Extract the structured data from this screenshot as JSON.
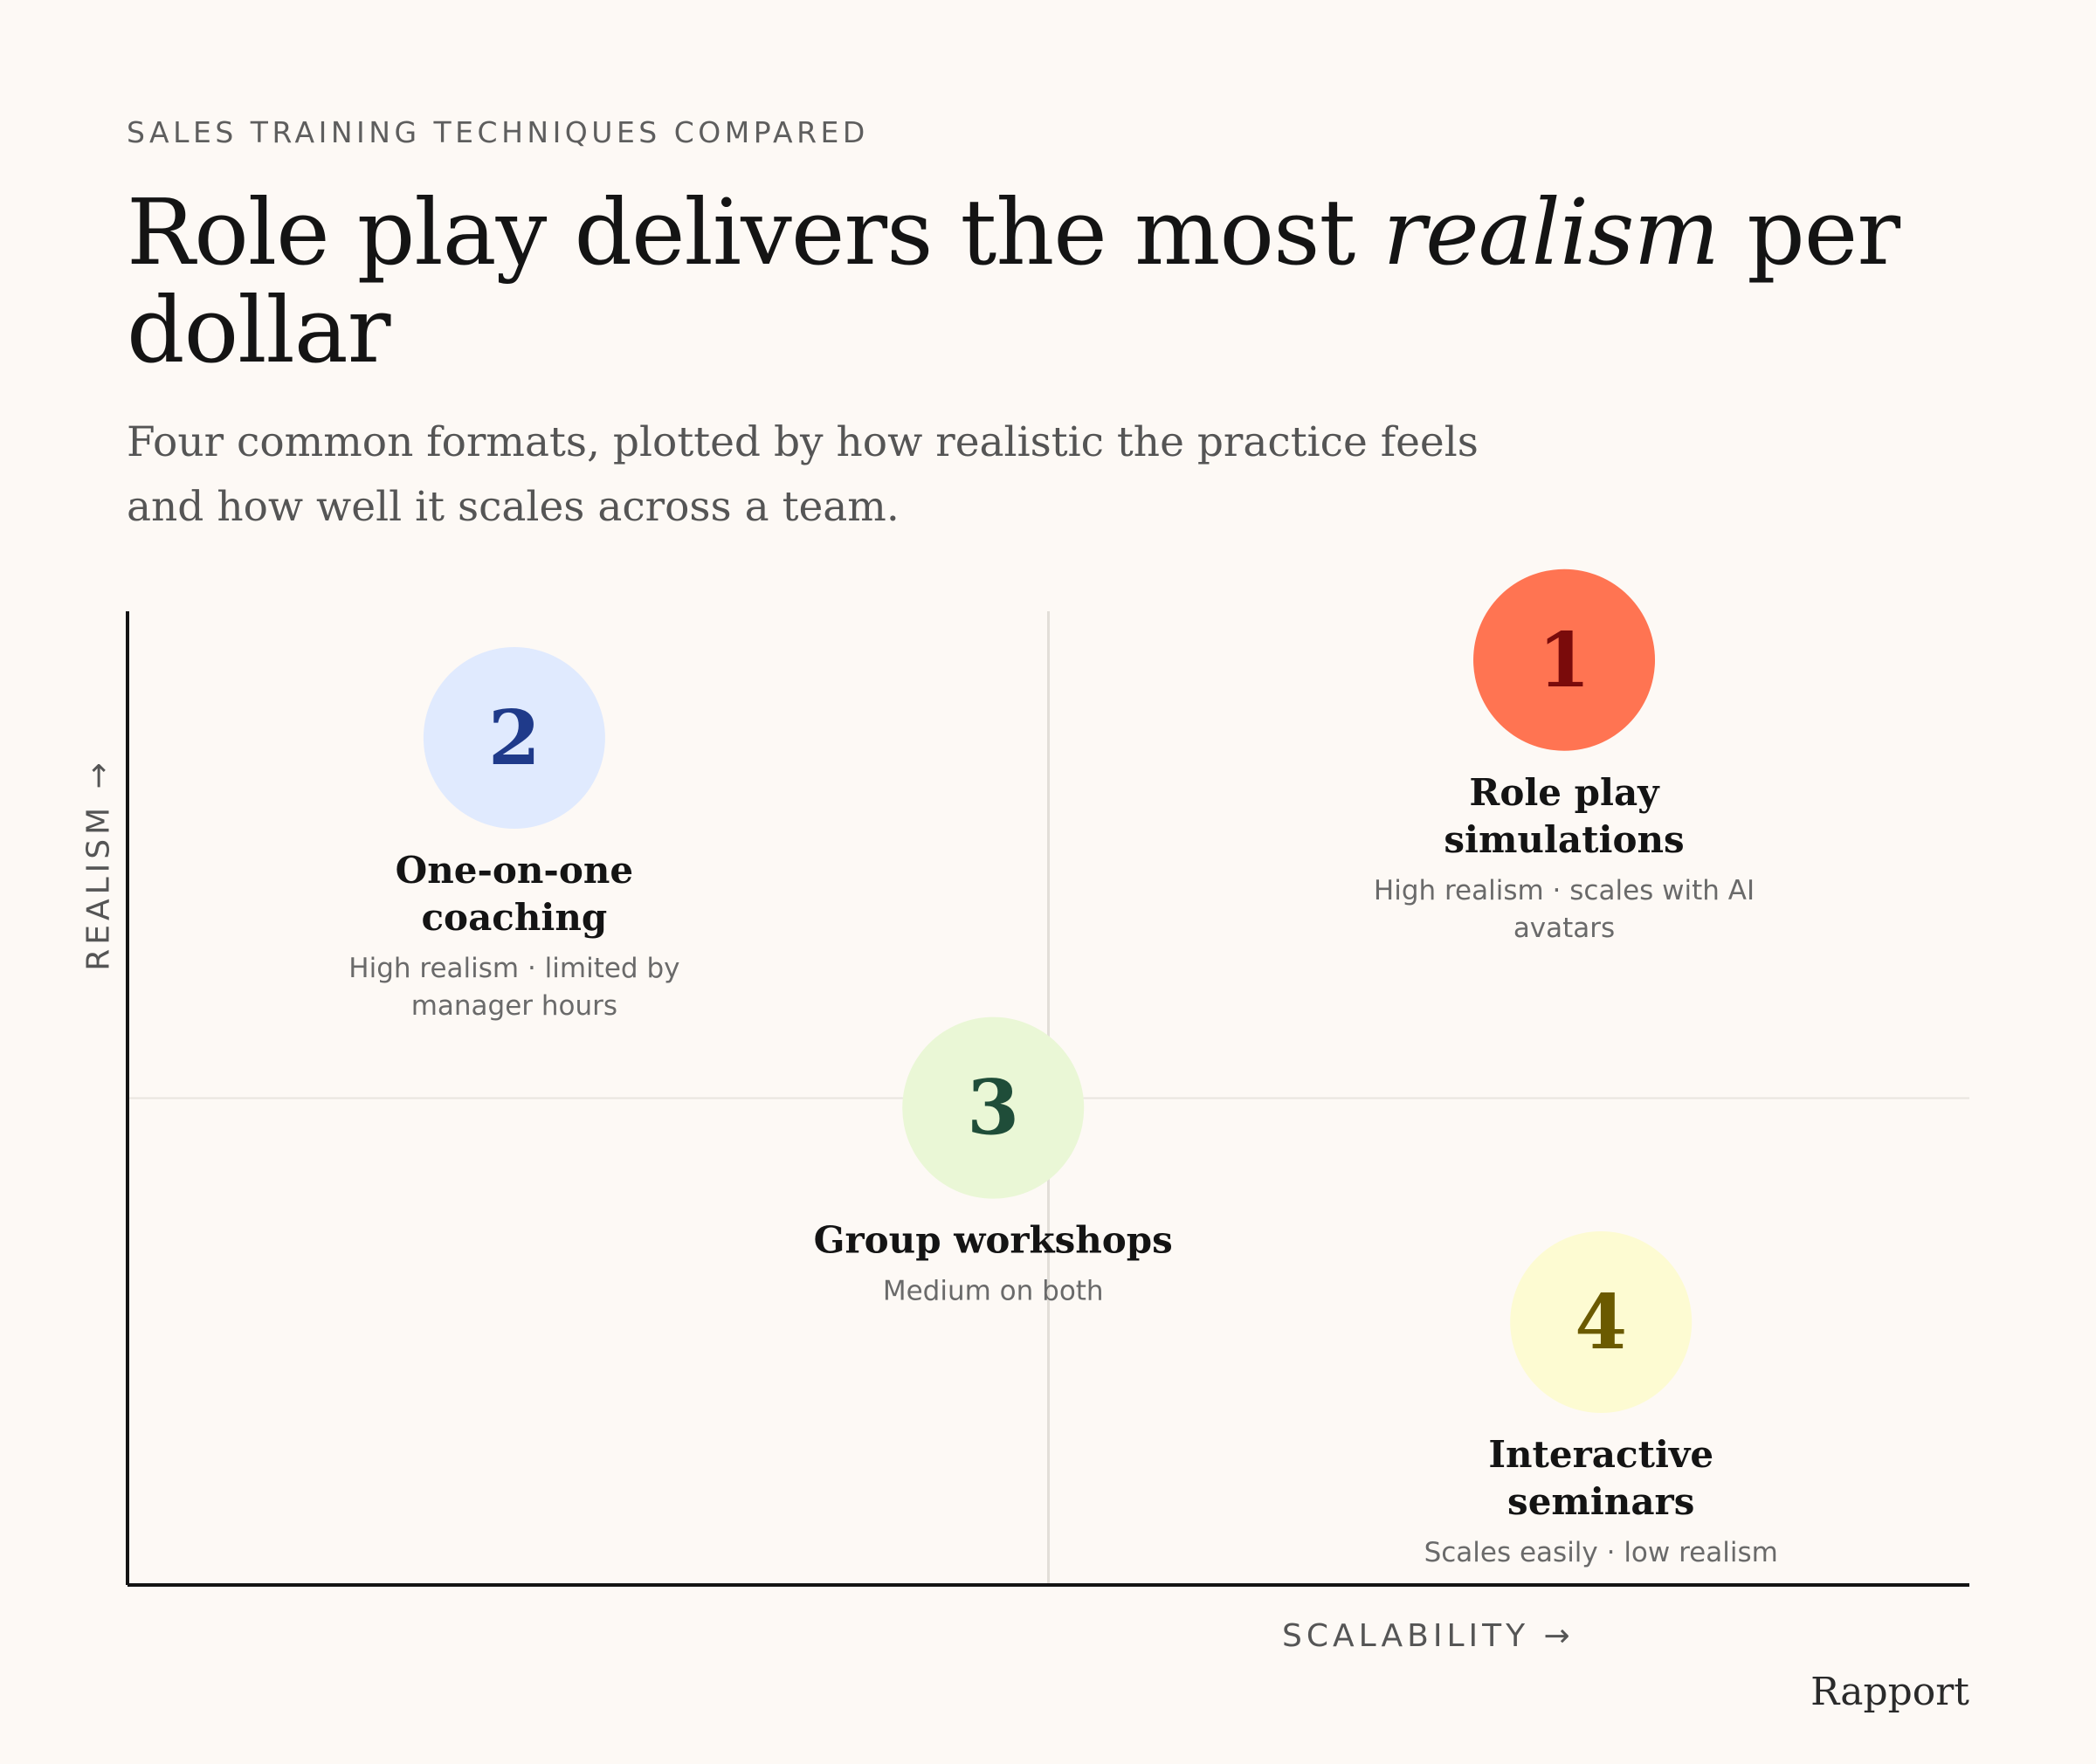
{
  "header": {
    "eyebrow": "SALES TRAINING TECHNIQUES COMPARED",
    "title_before": "Role play delivers the most ",
    "title_emphasis": "realism",
    "title_after": " per dollar",
    "subtitle": "Four common formats, plotted by how realistic the practice feels and how well it scales across a team."
  },
  "chart_data": {
    "type": "scatter",
    "xlabel": "SCALABILITY →",
    "ylabel": "REALISM →",
    "xlim": [
      0,
      100
    ],
    "ylim": [
      0,
      100
    ],
    "grid": false,
    "quadrant_dividers": {
      "x": 50,
      "y": 50
    },
    "points": [
      {
        "rank": "1",
        "label": "Role play simulations",
        "note": "High realism · scales with AI avatars",
        "x": 78,
        "y": 95,
        "fill": "#ff7452",
        "text_color": "#7a0b0b"
      },
      {
        "rank": "2",
        "label": "One-on-one coaching",
        "note": "High realism · limited by manager hours",
        "x": 21,
        "y": 87,
        "fill": "#e0eafe",
        "text_color": "#1f3a8a"
      },
      {
        "rank": "3",
        "label": "Group workshops",
        "note": "Medium on both",
        "x": 47,
        "y": 49,
        "fill": "#eaf7d6",
        "text_color": "#1f4d39"
      },
      {
        "rank": "4",
        "label": "Interactive seminars",
        "note": "Scales easily · low realism",
        "x": 80,
        "y": 27,
        "fill": "#fdfbd2",
        "text_color": "#6b5a00"
      }
    ]
  },
  "footer": {
    "brand": "Rapport"
  }
}
